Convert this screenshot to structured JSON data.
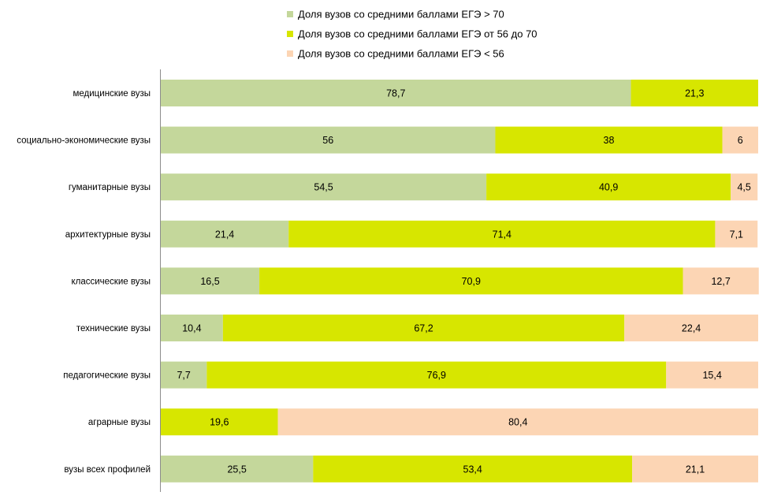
{
  "chart_data": {
    "type": "bar",
    "orientation": "horizontal",
    "stacked": "100%",
    "title": "",
    "xlabel": "",
    "ylabel": "",
    "xlim": [
      0,
      100
    ],
    "grid": false,
    "legend_position": "top",
    "categories": [
      "медицинские  вузы",
      "социально-экономические  вузы",
      "гуманитарные вузы",
      "архитектурные вузы",
      "классические вузы",
      "технические  вузы",
      "педагогические вузы",
      "аграрные вузы",
      "вузы всех профилей"
    ],
    "series": [
      {
        "name": "Доля вузов со средними баллами ЕГЭ > 70",
        "color": "#c4d79b",
        "values": [
          78.7,
          56,
          54.5,
          21.4,
          16.5,
          10.4,
          7.7,
          0,
          25.5
        ],
        "labels": [
          "78,7",
          "56",
          "54,5",
          "21,4",
          "16,5",
          "10,4",
          "7,7",
          "",
          "25,5"
        ]
      },
      {
        "name": "Доля вузов со средними баллами ЕГЭ от 56 до 70",
        "color": "#d7e600",
        "values": [
          21.3,
          38,
          40.9,
          71.4,
          70.9,
          67.2,
          76.9,
          19.6,
          53.4
        ],
        "labels": [
          "21,3",
          "38",
          "40,9",
          "71,4",
          "70,9",
          "67,2",
          "76,9",
          "19,6",
          "53,4"
        ]
      },
      {
        "name": "Доля вузов со средними баллами ЕГЭ < 56",
        "color": "#fcd5b4",
        "values": [
          0,
          6,
          4.5,
          7.1,
          12.7,
          22.4,
          15.4,
          80.4,
          21.1
        ],
        "labels": [
          "",
          "6",
          "4,5",
          "7,1",
          "12,7",
          "22,4",
          "15,4",
          "80,4",
          "21,1"
        ]
      }
    ]
  }
}
